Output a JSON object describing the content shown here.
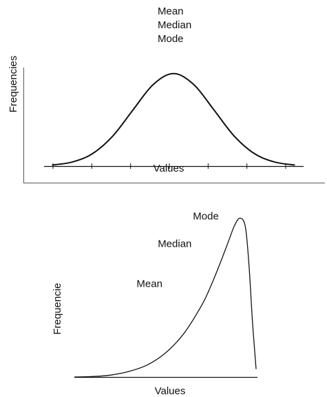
{
  "chart_data": [
    {
      "type": "line",
      "shape": "symmetric normal distribution (bell curve)",
      "title_lines": [
        "Mean",
        "Median",
        "Mode"
      ],
      "xlabel": "Values",
      "ylabel": "Frequencies",
      "x": [
        -3.0,
        -2.5,
        -2.0,
        -1.5,
        -1.0,
        -0.5,
        0.0,
        0.5,
        1.0,
        1.5,
        2.0,
        2.5,
        3.0
      ],
      "y": [
        0.011,
        0.044,
        0.135,
        0.325,
        0.607,
        0.882,
        1.0,
        0.882,
        0.607,
        0.325,
        0.135,
        0.044,
        0.011
      ],
      "xlim": [
        -3.3,
        3.3
      ],
      "ylim": [
        0,
        1.05
      ],
      "tick_count": 7,
      "grid": false,
      "line_color": "#111111"
    },
    {
      "type": "line",
      "shape": "negatively (left) skewed distribution",
      "xlabel": "Values",
      "ylabel": "Frequencie",
      "x": [
        0.0,
        0.1,
        0.2,
        0.3,
        0.4,
        0.5,
        0.6,
        0.7,
        0.75,
        0.8,
        0.85,
        0.88,
        0.91,
        0.94,
        0.96,
        0.98,
        1.0
      ],
      "y": [
        0.0,
        0.003,
        0.012,
        0.035,
        0.075,
        0.15,
        0.27,
        0.45,
        0.57,
        0.71,
        0.86,
        0.95,
        1.0,
        0.95,
        0.72,
        0.35,
        0.05
      ],
      "xlim": [
        0,
        1
      ],
      "ylim": [
        0,
        1.05
      ],
      "annotations": [
        {
          "text": "Mode",
          "x": 0.88,
          "y": 1.0
        },
        {
          "text": "Median",
          "x": 0.8,
          "y": 0.84
        },
        {
          "text": "Mean",
          "x": 0.74,
          "y": 0.6
        }
      ],
      "grid": false,
      "line_color": "#111111"
    }
  ]
}
